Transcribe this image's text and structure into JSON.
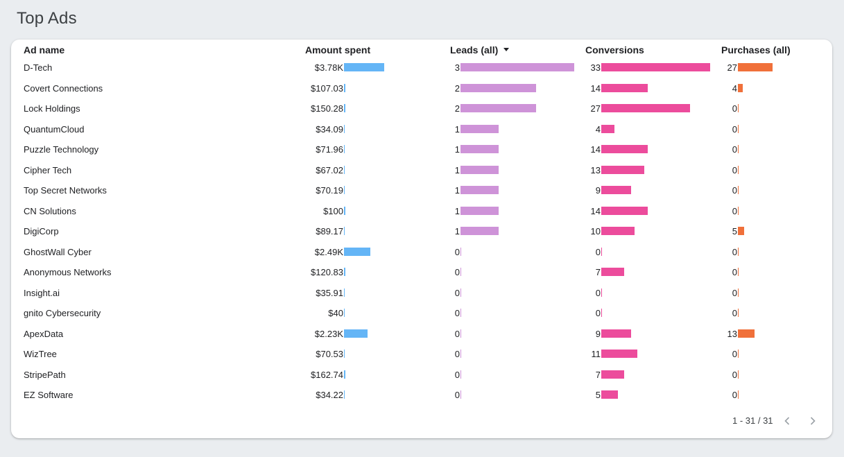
{
  "page": {
    "title": "Top Ads"
  },
  "table": {
    "columns": {
      "ad_name": "Ad name",
      "amount_spent": "Amount spent",
      "leads": "Leads (all)",
      "conversions": "Conversions",
      "purchases": "Purchases (all)"
    },
    "sort": {
      "column": "leads",
      "direction": "descending"
    },
    "scales": {
      "amount_max": 3780,
      "leads_max": 3,
      "conv_max": 33,
      "purch_max": 27
    },
    "colors": {
      "amount_bar": "#64b5f6",
      "leads_bar": "#ce93d8",
      "conversions_bar": "#ec4c9c",
      "purchases_bar": "#f0703a"
    },
    "rows": [
      {
        "name": "D-Tech",
        "amount": "$3.78K",
        "amount_value": 3780,
        "leads": "3",
        "leads_value": 3,
        "conversions": "33",
        "conversions_value": 33,
        "purchases": "27",
        "purchases_value": 27
      },
      {
        "name": "Covert Connections",
        "amount": "$107.03",
        "amount_value": 107.03,
        "leads": "2",
        "leads_value": 2,
        "conversions": "14",
        "conversions_value": 14,
        "purchases": "4",
        "purchases_value": 4
      },
      {
        "name": "Lock Holdings",
        "amount": "$150.28",
        "amount_value": 150.28,
        "leads": "2",
        "leads_value": 2,
        "conversions": "27",
        "conversions_value": 27,
        "purchases": "0",
        "purchases_value": 0
      },
      {
        "name": "QuantumCloud",
        "amount": "$34.09",
        "amount_value": 34.09,
        "leads": "1",
        "leads_value": 1,
        "conversions": "4",
        "conversions_value": 4,
        "purchases": "0",
        "purchases_value": 0
      },
      {
        "name": "Puzzle Technology",
        "amount": "$71.96",
        "amount_value": 71.96,
        "leads": "1",
        "leads_value": 1,
        "conversions": "14",
        "conversions_value": 14,
        "purchases": "0",
        "purchases_value": 0
      },
      {
        "name": "Cipher Tech",
        "amount": "$67.02",
        "amount_value": 67.02,
        "leads": "1",
        "leads_value": 1,
        "conversions": "13",
        "conversions_value": 13,
        "purchases": "0",
        "purchases_value": 0
      },
      {
        "name": "Top Secret Networks",
        "amount": "$70.19",
        "amount_value": 70.19,
        "leads": "1",
        "leads_value": 1,
        "conversions": "9",
        "conversions_value": 9,
        "purchases": "0",
        "purchases_value": 0
      },
      {
        "name": "CN Solutions",
        "amount": "$100",
        "amount_value": 100,
        "leads": "1",
        "leads_value": 1,
        "conversions": "14",
        "conversions_value": 14,
        "purchases": "0",
        "purchases_value": 0
      },
      {
        "name": "DigiCorp",
        "amount": "$89.17",
        "amount_value": 89.17,
        "leads": "1",
        "leads_value": 1,
        "conversions": "10",
        "conversions_value": 10,
        "purchases": "5",
        "purchases_value": 5
      },
      {
        "name": "GhostWall Cyber",
        "amount": "$2.49K",
        "amount_value": 2490,
        "leads": "0",
        "leads_value": 0,
        "conversions": "0",
        "conversions_value": 0,
        "purchases": "0",
        "purchases_value": 0
      },
      {
        "name": "Anonymous Networks",
        "amount": "$120.83",
        "amount_value": 120.83,
        "leads": "0",
        "leads_value": 0,
        "conversions": "7",
        "conversions_value": 7,
        "purchases": "0",
        "purchases_value": 0
      },
      {
        "name": "Insight.ai",
        "amount": "$35.91",
        "amount_value": 35.91,
        "leads": "0",
        "leads_value": 0,
        "conversions": "0",
        "conversions_value": 0,
        "purchases": "0",
        "purchases_value": 0
      },
      {
        "name": "gnito Cybersecurity",
        "amount": "$40",
        "amount_value": 40,
        "leads": "0",
        "leads_value": 0,
        "conversions": "0",
        "conversions_value": 0,
        "purchases": "0",
        "purchases_value": 0
      },
      {
        "name": "ApexData",
        "amount": "$2.23K",
        "amount_value": 2230,
        "leads": "0",
        "leads_value": 0,
        "conversions": "9",
        "conversions_value": 9,
        "purchases": "13",
        "purchases_value": 13
      },
      {
        "name": "WizTree",
        "amount": "$70.53",
        "amount_value": 70.53,
        "leads": "0",
        "leads_value": 0,
        "conversions": "11",
        "conversions_value": 11,
        "purchases": "0",
        "purchases_value": 0
      },
      {
        "name": "StripePath",
        "amount": "$162.74",
        "amount_value": 162.74,
        "leads": "0",
        "leads_value": 0,
        "conversions": "7",
        "conversions_value": 7,
        "purchases": "0",
        "purchases_value": 0
      },
      {
        "name": "EZ Software",
        "amount": "$34.22",
        "amount_value": 34.22,
        "leads": "0",
        "leads_value": 0,
        "conversions": "5",
        "conversions_value": 5,
        "purchases": "0",
        "purchases_value": 0
      }
    ]
  },
  "pagination": {
    "label": "1 - 31 / 31",
    "prev_icon": "chevron-left-icon",
    "next_icon": "chevron-right-icon"
  }
}
